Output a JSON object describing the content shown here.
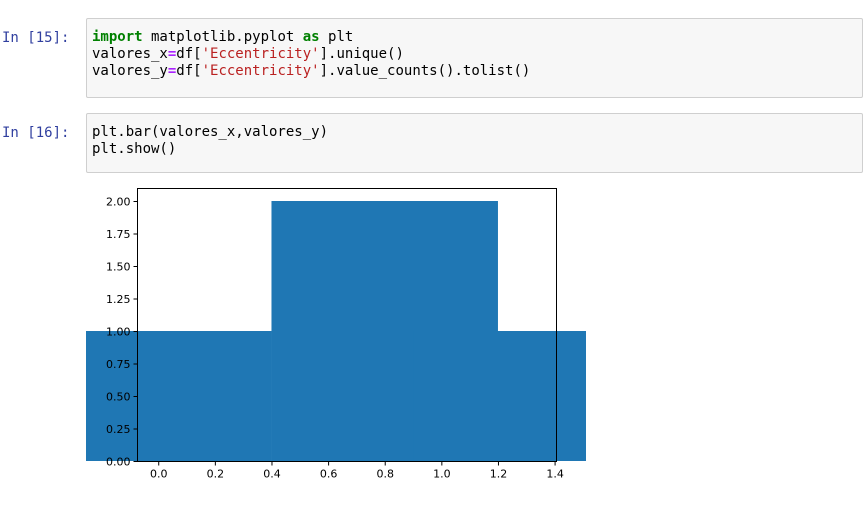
{
  "cells": [
    {
      "prompt": "In [15]:",
      "lines": [
        [
          {
            "t": "import",
            "c": "kw"
          },
          {
            "t": " matplotlib.pyplot ",
            "c": ""
          },
          {
            "t": "as",
            "c": "kw"
          },
          {
            "t": " plt",
            "c": ""
          }
        ],
        [
          {
            "t": "valores_x",
            "c": ""
          },
          {
            "t": "=",
            "c": "op"
          },
          {
            "t": "df[",
            "c": ""
          },
          {
            "t": "'Eccentricity'",
            "c": "str"
          },
          {
            "t": "].unique()",
            "c": ""
          }
        ],
        [
          {
            "t": "valores_y",
            "c": ""
          },
          {
            "t": "=",
            "c": "op"
          },
          {
            "t": "df[",
            "c": ""
          },
          {
            "t": "'Eccentricity'",
            "c": "str"
          },
          {
            "t": "].value_counts().tolist()",
            "c": ""
          }
        ]
      ]
    },
    {
      "prompt": "In [16]:",
      "lines": [
        [
          {
            "t": "plt.bar(valores_x,valores_y)",
            "c": ""
          }
        ],
        [
          {
            "t": "plt.show()",
            "c": ""
          }
        ]
      ]
    }
  ],
  "chart_data": {
    "type": "bar",
    "bar_color": "#1f77b4",
    "x": [
      0.0,
      0.8,
      1.3
    ],
    "values": [
      1,
      2,
      1
    ],
    "bar_width": 0.8,
    "xlim": [
      -0.075,
      1.405
    ],
    "ylim": [
      0,
      2.1
    ],
    "xticks": [
      0.0,
      0.2,
      0.4,
      0.6,
      0.8,
      1.0,
      1.2,
      1.4
    ],
    "xtick_labels": [
      "0.0",
      "0.2",
      "0.4",
      "0.6",
      "0.8",
      "1.0",
      "1.2",
      "1.4"
    ],
    "yticks": [
      0.0,
      0.25,
      0.5,
      0.75,
      1.0,
      1.25,
      1.5,
      1.75,
      2.0
    ],
    "ytick_labels": [
      "0.00",
      "0.25",
      "0.50",
      "0.75",
      "1.00",
      "1.25",
      "1.50",
      "1.75",
      "2.00"
    ],
    "title": "",
    "xlabel": "",
    "ylabel": "",
    "grid": false
  }
}
